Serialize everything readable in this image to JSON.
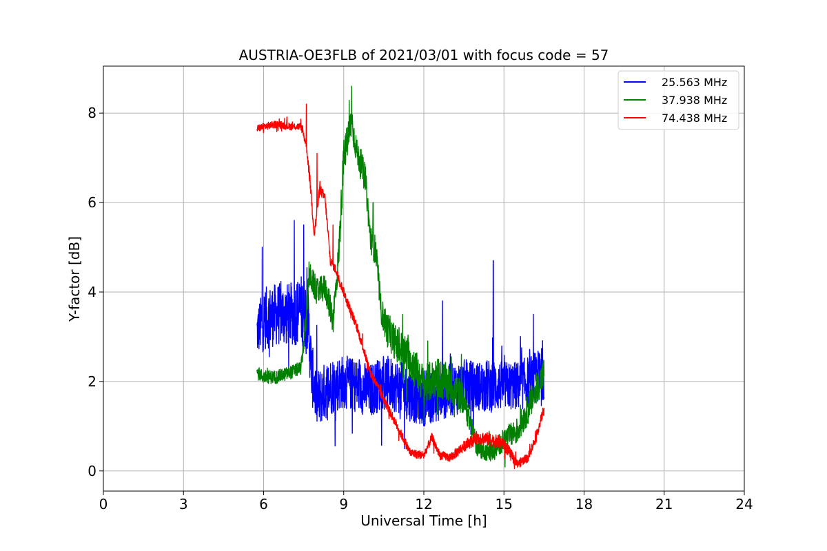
{
  "chart_data": {
    "type": "line",
    "title": "AUSTRIA-OE3FLB of 2021/03/01 with focus code = 57",
    "xlabel": "Universal Time [h]",
    "ylabel": "Y-factor [dB]",
    "xlim": [
      0,
      24
    ],
    "ylim": [
      -0.45,
      9.05
    ],
    "xticks": [
      0,
      3,
      6,
      9,
      12,
      15,
      18,
      21,
      24
    ],
    "yticks": [
      0,
      2,
      4,
      6,
      8
    ],
    "grid": true,
    "legend_position": "top-right",
    "series": [
      {
        "name": "25.563 MHz",
        "color": "#0000ff",
        "x": [
          5.75,
          6.0,
          6.5,
          7.0,
          7.4,
          7.65,
          7.8,
          8.0,
          8.5,
          9.0,
          9.5,
          10.0,
          10.5,
          11.0,
          11.5,
          12.0,
          12.5,
          13.0,
          13.5,
          14.0,
          14.5,
          15.0,
          15.5,
          16.0,
          16.5
        ],
        "y": [
          3.1,
          3.4,
          3.5,
          3.5,
          3.6,
          3.5,
          2.2,
          1.6,
          1.9,
          2.0,
          1.9,
          1.8,
          2.0,
          1.9,
          1.7,
          1.6,
          1.7,
          1.8,
          1.9,
          1.9,
          1.9,
          1.9,
          1.9,
          2.0,
          2.2
        ],
        "amplitude": [
          0.55,
          0.7,
          0.7,
          0.7,
          0.8,
          0.8,
          0.7,
          0.65,
          0.65,
          0.6,
          0.6,
          0.6,
          0.6,
          0.6,
          0.6,
          0.6,
          0.6,
          0.6,
          0.6,
          0.55,
          0.6,
          0.55,
          0.55,
          0.6,
          0.6
        ],
        "spikes": [
          [
            5.95,
            5.0
          ],
          [
            7.15,
            5.6
          ],
          [
            7.5,
            5.5
          ],
          [
            12.7,
            3.8
          ],
          [
            14.6,
            4.7
          ],
          [
            16.1,
            3.5
          ]
        ]
      },
      {
        "name": "37.938 MHz",
        "color": "#008000",
        "x": [
          5.75,
          6.0,
          6.5,
          7.0,
          7.4,
          7.6,
          7.7,
          8.0,
          8.3,
          8.6,
          8.8,
          9.0,
          9.3,
          9.5,
          9.8,
          10.0,
          10.2,
          10.4,
          10.6,
          11.0,
          11.5,
          12.0,
          12.5,
          13.0,
          13.5,
          14.0,
          14.5,
          15.0,
          15.5,
          16.0,
          16.5
        ],
        "y": [
          2.2,
          2.1,
          2.1,
          2.2,
          2.3,
          3.4,
          4.4,
          4.0,
          4.1,
          3.4,
          4.7,
          7.0,
          7.8,
          7.1,
          6.6,
          5.2,
          4.9,
          3.6,
          3.2,
          2.8,
          2.5,
          1.9,
          2.1,
          1.9,
          1.6,
          0.5,
          0.4,
          0.7,
          0.9,
          1.5,
          2.2
        ],
        "amplitude": [
          0.15,
          0.15,
          0.15,
          0.15,
          0.15,
          0.25,
          0.3,
          0.3,
          0.3,
          0.35,
          0.4,
          0.4,
          0.4,
          0.3,
          0.3,
          0.3,
          0.35,
          0.3,
          0.4,
          0.4,
          0.45,
          0.45,
          0.45,
          0.45,
          0.35,
          0.2,
          0.2,
          0.25,
          0.3,
          0.35,
          0.35
        ],
        "spikes": [
          [
            9.3,
            8.6
          ],
          [
            10.1,
            6.0
          ],
          [
            11.2,
            3.5
          ]
        ]
      },
      {
        "name": "74.438 MHz",
        "color": "#ff0000",
        "x": [
          5.75,
          6.0,
          6.5,
          7.0,
          7.4,
          7.6,
          7.75,
          7.9,
          8.1,
          8.3,
          8.5,
          8.7,
          9.0,
          9.5,
          10.0,
          10.5,
          11.0,
          11.5,
          12.0,
          12.3,
          12.6,
          13.0,
          13.5,
          14.0,
          14.5,
          15.0,
          15.5,
          15.9,
          16.2,
          16.5
        ],
        "y": [
          7.65,
          7.7,
          7.75,
          7.7,
          7.7,
          7.3,
          6.4,
          5.3,
          6.3,
          6.1,
          4.7,
          4.5,
          4.0,
          3.2,
          2.2,
          1.6,
          1.0,
          0.4,
          0.35,
          0.75,
          0.35,
          0.3,
          0.55,
          0.75,
          0.7,
          0.6,
          0.15,
          0.3,
          0.75,
          1.4
        ],
        "amplitude": [
          0.08,
          0.08,
          0.08,
          0.08,
          0.08,
          0.1,
          0.15,
          0.15,
          0.12,
          0.12,
          0.1,
          0.1,
          0.1,
          0.1,
          0.1,
          0.1,
          0.1,
          0.1,
          0.1,
          0.1,
          0.1,
          0.1,
          0.12,
          0.15,
          0.15,
          0.15,
          0.1,
          0.1,
          0.1,
          0.12
        ],
        "spikes": [
          [
            7.6,
            8.2
          ],
          [
            8.0,
            7.1
          ],
          [
            8.6,
            5.5
          ]
        ]
      }
    ]
  }
}
